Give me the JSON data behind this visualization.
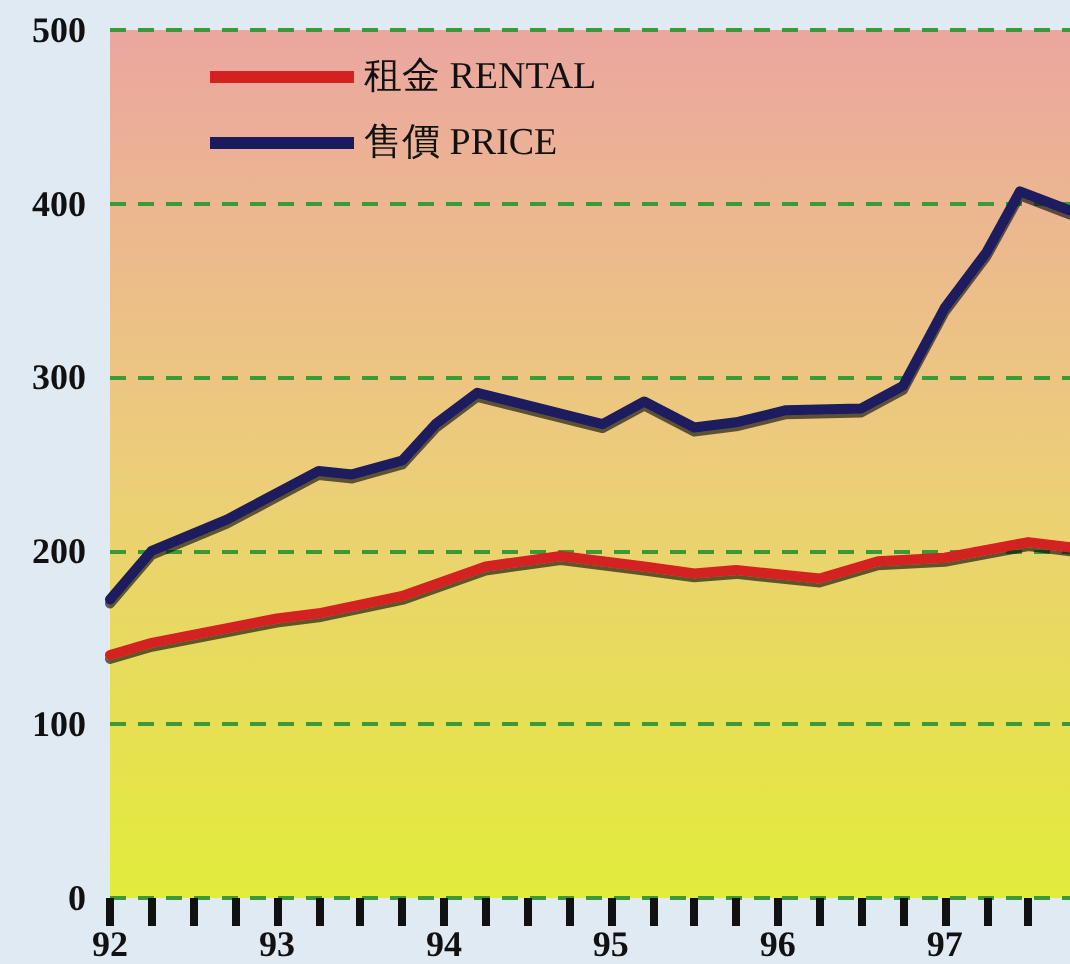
{
  "chart_data": {
    "type": "line",
    "series": [
      {
        "name": "租金 RENTAL",
        "color": "#d42020",
        "x": [
          92,
          92.25,
          93,
          93.25,
          93.75,
          94.25,
          94.7,
          95.2,
          95.5,
          95.75,
          96.25,
          96.6,
          97,
          97.5,
          97.75
        ],
        "values": [
          140,
          147,
          161,
          164,
          174,
          191,
          197,
          191,
          187,
          189,
          184,
          194,
          196,
          205,
          202
        ]
      },
      {
        "name": "售價 PRICE",
        "color": "#1a1a5e",
        "x": [
          92,
          92.25,
          92.7,
          93.25,
          93.45,
          93.75,
          93.95,
          94.2,
          94.95,
          95.2,
          95.5,
          95.75,
          96.05,
          96.5,
          96.75,
          97,
          97.25,
          97.45,
          97.75
        ],
        "values": [
          172,
          200,
          218,
          246,
          244,
          252,
          273,
          291,
          273,
          286,
          271,
          274,
          281,
          282,
          295,
          340,
          372,
          407,
          396
        ]
      }
    ],
    "xlim": [
      92,
      97.75
    ],
    "xticks": [
      92,
      {
        "value": 92.25,
        "label": null
      },
      {
        "value": 92.5,
        "label": null
      },
      {
        "value": 92.75,
        "label": null
      },
      93,
      {
        "value": 93.25,
        "label": null
      },
      {
        "value": 93.5,
        "label": null
      },
      {
        "value": 93.75,
        "label": null
      },
      94,
      {
        "value": 94.25,
        "label": null
      },
      {
        "value": 94.5,
        "label": null
      },
      {
        "value": 94.75,
        "label": null
      },
      95,
      {
        "value": 95.25,
        "label": null
      },
      {
        "value": 95.5,
        "label": null
      },
      {
        "value": 95.75,
        "label": null
      },
      96,
      {
        "value": 96.25,
        "label": null
      },
      {
        "value": 96.5,
        "label": null
      },
      {
        "value": 96.75,
        "label": null
      },
      97,
      {
        "value": 97.25,
        "label": null
      },
      {
        "value": 97.5,
        "label": null
      }
    ],
    "ylim": [
      0,
      500
    ],
    "yticks": [
      0,
      100,
      200,
      300,
      400,
      500
    ],
    "grid": "y",
    "legend": "top left",
    "marker": "none",
    "line_style": "solid"
  }
}
